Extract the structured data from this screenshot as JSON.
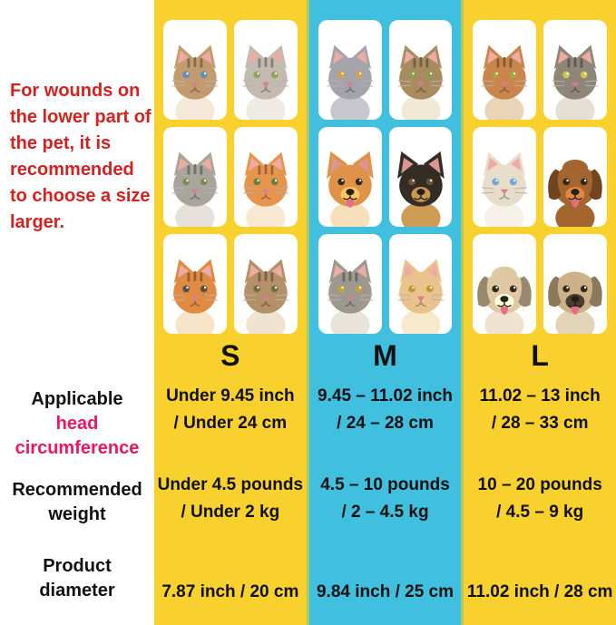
{
  "colors": {
    "note_red": "#D3221F",
    "label_pink": "#EE1660",
    "label_black": "#111111",
    "yellow": "#F9D12E",
    "cyan": "#41BFDF",
    "separator_green": "#A9C86A"
  },
  "note": {
    "text": "For wounds on the lower part of the pet, it is recommended to choose a size larger."
  },
  "rowLabels": {
    "circumference": {
      "black": "Applicable",
      "pink": "head circumference"
    },
    "weight": "Recommended weight",
    "diameter": "Product diameter"
  },
  "columns": [
    {
      "size": "S",
      "bg": "#F9D12E",
      "head": [
        "Under 9.45 inch",
        "/ Under 24 cm"
      ],
      "weight": [
        "Under 4.5 pounds",
        "/ Under 2 kg"
      ],
      "diameter": "7.87 inch / 20 cm",
      "pets": [
        {
          "name": "fluffy-brown-kitten",
          "type": "cat",
          "fur": "#C49B6E",
          "chest": "#F4E9D8",
          "stripes": true,
          "eye": "#5B8FBF"
        },
        {
          "name": "silver-tabby-kitten",
          "type": "cat",
          "fur": "#C3BBB1",
          "chest": "#EFEAE3",
          "stripes": true,
          "eye": "#8FA35A"
        },
        {
          "name": "gray-tabby-kitten",
          "type": "cat",
          "fur": "#A9A49C",
          "chest": "#E5E1DA",
          "stripes": true,
          "eye": "#7B8E4E"
        },
        {
          "name": "orange-tabby-kitten",
          "type": "cat",
          "fur": "#E6954E",
          "chest": "#F8E8D2",
          "stripes": true,
          "eye": "#6B7F3E"
        },
        {
          "name": "ginger-kitten",
          "type": "cat",
          "fur": "#E08A42",
          "chest": "#F8E4C8",
          "stripes": true,
          "eye": "#55524A"
        },
        {
          "name": "brown-tabby-kitten",
          "type": "cat",
          "fur": "#B39067",
          "chest": "#EFE3CF",
          "stripes": true,
          "eye": "#6E6E46"
        }
      ]
    },
    {
      "size": "M",
      "bg": "#41BFDF",
      "head": [
        "9.45 – 11.02 inch",
        "/ 24 – 28 cm"
      ],
      "weight": [
        "4.5 – 10 pounds",
        "/ 2 – 4.5 kg"
      ],
      "diameter": "9.84 inch / 25 cm",
      "pets": [
        {
          "name": "gray-british-shorthair-cat",
          "type": "cat",
          "fur": "#A4A4AC",
          "chest": "#C6C6CC",
          "stripes": false,
          "eye": "#D8A03E"
        },
        {
          "name": "brown-tabby-cat",
          "type": "cat",
          "fur": "#A88B5E",
          "chest": "#F1E8D6",
          "stripes": true,
          "eye": "#86A04A"
        },
        {
          "name": "pomeranian-dog",
          "type": "dog",
          "ears": "pointy",
          "fur": "#DE9348",
          "chest": "#F6DFBB",
          "tongue": true
        },
        {
          "name": "chihuahua-dog",
          "type": "dog",
          "ears": "pointy",
          "fur": "#332D26",
          "chest": "#CE9C55",
          "muzzle": "#C9984F",
          "eye": "#6B5435",
          "tongue": false
        },
        {
          "name": "gray-tabby-cat",
          "type": "cat",
          "fur": "#9E998F",
          "chest": "#E8E4DC",
          "stripes": true,
          "eye": "#C8A23C"
        },
        {
          "name": "cream-cat",
          "type": "cat",
          "fur": "#E9C28C",
          "chest": "#F7E8CE",
          "stripes": false,
          "eye": "#C8952F"
        }
      ]
    },
    {
      "size": "L",
      "bg": "#F9D12E",
      "head": [
        "11.02 – 13 inch",
        "/ 28 – 33 cm"
      ],
      "weight": [
        "10 – 20 pounds",
        "/ 4.5 – 9 kg"
      ],
      "diameter": "11.02 inch / 28 cm",
      "pets": [
        {
          "name": "orange-maine-coon-cat",
          "type": "cat",
          "fur": "#C9854C",
          "chest": "#E9D4B8",
          "stripes": true,
          "eye": "#A3A83F"
        },
        {
          "name": "gray-maine-coon-cat",
          "type": "cat",
          "fur": "#8D8679",
          "chest": "#E6E0D4",
          "stripes": true,
          "eye": "#CFC84A"
        },
        {
          "name": "ragdoll-cat",
          "type": "cat",
          "fur": "#E8DCCB",
          "chest": "#F6F1E8",
          "stripes": false,
          "eye": "#6FA8D8"
        },
        {
          "name": "brown-poodle-dog",
          "type": "dog",
          "ears": "floppy",
          "fur": "#A5652F",
          "chest": "#A5652F",
          "topknot": true,
          "tongue": true
        },
        {
          "name": "cream-havanese-dog",
          "type": "dog",
          "ears": "floppy",
          "fur": "#DFC8A2",
          "chest": "#EFE3CF",
          "topknot": true,
          "tongue": true
        },
        {
          "name": "pug-dog",
          "type": "dog",
          "ears": "floppy",
          "fur": "#CDB287",
          "chest": "#E3D4B8",
          "muzzle": "#4A3F33",
          "tongue": true
        }
      ]
    }
  ],
  "chart_data": {
    "type": "table",
    "title": "Pet size chart (S / M / L)",
    "columns": [
      "S",
      "M",
      "L"
    ],
    "rows": [
      {
        "label": "Applicable head circumference",
        "values": [
          "Under 9.45 inch / Under 24 cm",
          "9.45 – 11.02 inch / 24 – 28 cm",
          "11.02 – 13 inch / 28 – 33 cm"
        ]
      },
      {
        "label": "Recommended weight",
        "values": [
          "Under 4.5 pounds / Under 2 kg",
          "4.5 – 10 pounds / 2 – 4.5 kg",
          "10 – 20 pounds / 4.5 – 9 kg"
        ]
      },
      {
        "label": "Product diameter",
        "values": [
          "7.87 inch / 20 cm",
          "9.84 inch / 25 cm",
          "11.02 inch / 28 cm"
        ]
      }
    ],
    "note": "For wounds on the lower part of the pet, it is recommended to choose a size larger."
  }
}
